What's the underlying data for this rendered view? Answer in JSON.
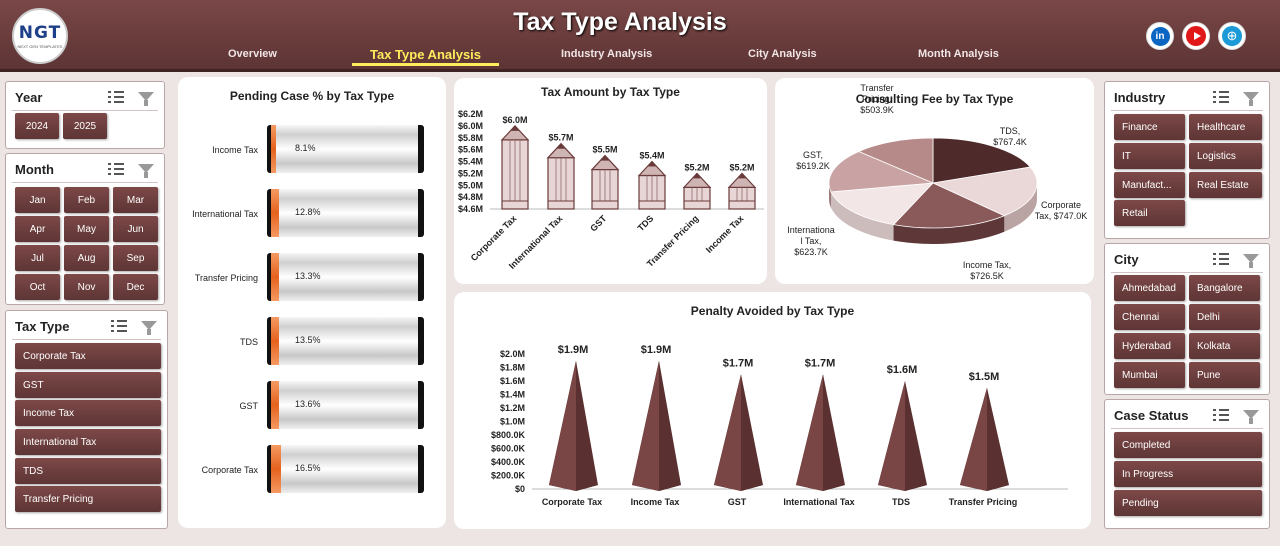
{
  "header": {
    "title": "Tax Type Analysis",
    "logo_text": "NGT",
    "logo_sub": "NEXT GEN TEMPLATES",
    "tabs": [
      {
        "label": "Overview"
      },
      {
        "label": "Tax Type Analysis",
        "active": true
      },
      {
        "label": "Industry Analysis"
      },
      {
        "label": "City Analysis"
      },
      {
        "label": "Month Analysis"
      }
    ],
    "social": {
      "linkedin": "in",
      "web": "⊕"
    }
  },
  "slicers": {
    "year": {
      "title": "Year",
      "items": [
        "2024",
        "2025"
      ]
    },
    "month": {
      "title": "Month",
      "items": [
        "Jan",
        "Feb",
        "Mar",
        "Apr",
        "May",
        "Jun",
        "Jul",
        "Aug",
        "Sep",
        "Oct",
        "Nov",
        "Dec"
      ]
    },
    "tax_type": {
      "title": "Tax Type",
      "items": [
        "Corporate Tax",
        "GST",
        "Income Tax",
        "International Tax",
        "TDS",
        "Transfer Pricing"
      ]
    },
    "industry": {
      "title": "Industry",
      "items": [
        "Finance",
        "Healthcare",
        "IT",
        "Logistics",
        "Manufact...",
        "Real Estate",
        "Retail"
      ]
    },
    "city": {
      "title": "City",
      "items": [
        "Ahmedabad",
        "Bangalore",
        "Chennai",
        "Delhi",
        "Hyderabad",
        "Kolkata",
        "Mumbai",
        "Pune"
      ]
    },
    "case_status": {
      "title": "Case Status",
      "items": [
        "Completed",
        "In Progress",
        "Pending"
      ]
    }
  },
  "colors": {
    "accent": "#6b3b3b",
    "orange": "#ec6a26",
    "header": "#6d3e3e"
  },
  "chart_data": [
    {
      "id": "pending",
      "type": "bar",
      "title": "Pending Case % by Tax Type",
      "categories": [
        "Income Tax",
        "International Tax",
        "Transfer Pricing",
        "TDS",
        "GST",
        "Corporate Tax"
      ],
      "values": [
        8.1,
        12.8,
        13.3,
        13.5,
        13.6,
        16.5
      ],
      "labels": [
        "8.1%",
        "12.8%",
        "13.3%",
        "13.5%",
        "13.6%",
        "16.5%"
      ],
      "xlim": [
        0,
        100
      ]
    },
    {
      "id": "amount",
      "type": "bar",
      "title": "Tax Amount by Tax Type",
      "categories": [
        "Corporate Tax",
        "International Tax",
        "GST",
        "TDS",
        "Transfer Pricing",
        "Income Tax"
      ],
      "values": [
        6.0,
        5.7,
        5.5,
        5.4,
        5.2,
        5.2
      ],
      "labels": [
        "$6.0M",
        "$5.7M",
        "$5.5M",
        "$5.4M",
        "$5.2M",
        "$5.2M"
      ],
      "ylim": [
        4.6,
        6.2
      ],
      "ticks": [
        "$6.2M",
        "$6.0M",
        "$5.8M",
        "$5.6M",
        "$5.4M",
        "$5.2M",
        "$5.0M",
        "$4.8M",
        "$4.6M"
      ]
    },
    {
      "id": "consulting",
      "type": "pie",
      "title": "Consulting Fee by Tax Type",
      "slices": [
        {
          "name": "TDS",
          "value": 767.4,
          "label": "TDS, $767.4K"
        },
        {
          "name": "Corporate Tax",
          "value": 747.0,
          "label": "Corporate Tax, $747.0K"
        },
        {
          "name": "Income Tax",
          "value": 726.5,
          "label": "Income Tax, $726.5K"
        },
        {
          "name": "International Tax",
          "value": 623.7,
          "label": "Internationa l Tax, $623.7K"
        },
        {
          "name": "GST",
          "value": 619.2,
          "label": "GST, $619.2K"
        },
        {
          "name": "Transfer Pricing",
          "value": 503.9,
          "label": "Transfer Pricing, $503.9K"
        }
      ]
    },
    {
      "id": "penalty",
      "type": "bar",
      "title": "Penalty Avoided by Tax Type",
      "categories": [
        "Corporate Tax",
        "Income Tax",
        "GST",
        "International Tax",
        "TDS",
        "Transfer Pricing"
      ],
      "values": [
        1.9,
        1.9,
        1.7,
        1.7,
        1.6,
        1.5
      ],
      "labels": [
        "$1.9M",
        "$1.9M",
        "$1.7M",
        "$1.7M",
        "$1.6M",
        "$1.5M"
      ],
      "ylim": [
        0,
        2.0
      ],
      "ticks": [
        "$2.0M",
        "$1.8M",
        "$1.6M",
        "$1.4M",
        "$1.2M",
        "$1.0M",
        "$800.0K",
        "$600.0K",
        "$400.0K",
        "$200.0K",
        "$0"
      ]
    }
  ]
}
